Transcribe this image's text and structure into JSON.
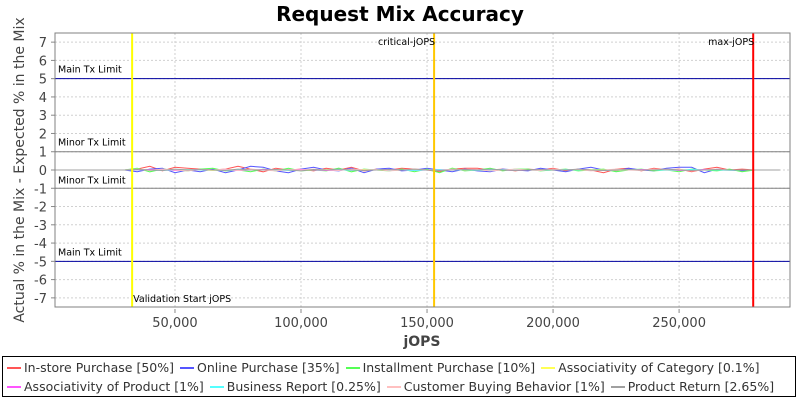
{
  "chart_data": {
    "type": "line",
    "title": "Request Mix Accuracy",
    "xlabel": "jOPS",
    "ylabel": "Actual % in the Mix - Expected % in the Mix",
    "xlim": [
      2400,
      294000
    ],
    "ylim": [
      -7.5,
      7.5
    ],
    "xticks": [
      50000,
      100000,
      150000,
      200000,
      250000
    ],
    "xtick_labels": [
      "50,000",
      "100,000",
      "150,000",
      "200,000",
      "250,000"
    ],
    "yticks": [
      7,
      6,
      5,
      4,
      3,
      2,
      1,
      0,
      -1,
      -2,
      -3,
      -4,
      -5,
      -6,
      -7
    ],
    "grid": true,
    "legend_position": "bottom",
    "hlines": [
      {
        "y": 5,
        "label": "Main Tx Limit",
        "color": "#0000a0"
      },
      {
        "y": 1,
        "label": "Minor Tx Limit",
        "color": "#808080"
      },
      {
        "y": -1,
        "label": "Minor Tx Limit",
        "color": "#808080"
      },
      {
        "y": -5,
        "label": "Main Tx Limit",
        "color": "#0000a0"
      }
    ],
    "vlines": [
      {
        "x": 33000,
        "label": "Validation Start jOPS",
        "color": "#ffff00"
      },
      {
        "x": 152800,
        "label": "critical-jOPS",
        "color": "#ffc800"
      },
      {
        "x": 279400,
        "label": "max-jOPS",
        "color": "#ff0000"
      }
    ],
    "x": [
      5000,
      10000,
      15000,
      20000,
      25000,
      30000,
      35000,
      40000,
      45000,
      50000,
      55000,
      60000,
      65000,
      70000,
      75000,
      80000,
      85000,
      90000,
      95000,
      100000,
      105000,
      110000,
      115000,
      120000,
      125000,
      130000,
      135000,
      140000,
      145000,
      150000,
      155000,
      160000,
      165000,
      170000,
      175000,
      180000,
      185000,
      190000,
      195000,
      200000,
      205000,
      210000,
      215000,
      220000,
      225000,
      230000,
      235000,
      240000,
      245000,
      250000,
      255000,
      260000,
      265000,
      270000,
      275000,
      280000,
      285000,
      290000
    ],
    "series": [
      {
        "name": "In-store Purchase [50%]",
        "color": "#ff5555",
        "values": [
          0,
          0,
          0,
          0,
          0,
          0,
          0.05,
          0.2,
          -0.05,
          0.15,
          0.1,
          0.05,
          0,
          0.05,
          0.2,
          0.05,
          -0.1,
          0.1,
          0,
          0.05,
          -0.05,
          0.1,
          0,
          0.15,
          -0.05,
          0.05,
          0,
          0.1,
          0.05,
          0,
          -0.1,
          0.05,
          0.1,
          0.1,
          0,
          0.05,
          -0.05,
          0.05,
          0,
          0.1,
          -0.05,
          0.05,
          0,
          -0.15,
          0.05,
          0.1,
          -0.05,
          0.1,
          0,
          0.05,
          -0.1,
          0.05,
          0.15,
          0,
          0.05,
          0,
          0,
          0
        ]
      },
      {
        "name": "Online Purchase [35%]",
        "color": "#5555ff",
        "values": [
          0,
          0,
          0,
          0,
          0,
          0,
          -0.1,
          0.05,
          0.1,
          -0.15,
          0,
          -0.1,
          0.05,
          -0.15,
          0,
          0.2,
          0.15,
          -0.05,
          -0.15,
          0.05,
          0.15,
          0,
          -0.05,
          0.1,
          -0.15,
          0.05,
          0.1,
          -0.05,
          0,
          0.1,
          0,
          -0.1,
          0.05,
          -0.05,
          -0.1,
          0.05,
          0,
          -0.05,
          0.1,
          0,
          -0.1,
          0.05,
          0.15,
          0,
          -0.05,
          0.1,
          0,
          -0.05,
          0.1,
          0.15,
          0.15,
          -0.15,
          0.05,
          0,
          -0.05,
          0,
          0,
          0
        ]
      },
      {
        "name": "Installment Purchase [10%]",
        "color": "#55ff55",
        "values": [
          0,
          0,
          0,
          0,
          0,
          0,
          0.1,
          -0.1,
          0.05,
          0,
          -0.05,
          0.05,
          0.1,
          -0.05,
          0,
          -0.1,
          0.05,
          -0.05,
          0.1,
          -0.05,
          0,
          -0.05,
          0.1,
          -0.1,
          0.05,
          0,
          -0.05,
          0.05,
          -0.1,
          0.05,
          -0.15,
          0.1,
          -0.05,
          0,
          0.1,
          -0.05,
          0.05,
          0.05,
          -0.05,
          0,
          0.05,
          -0.05,
          0,
          0.05,
          -0.1,
          0,
          0.05,
          -0.05,
          0,
          -0.1,
          0.05,
          0,
          -0.05,
          0.05,
          -0.1,
          0,
          0,
          0
        ]
      },
      {
        "name": "Associativity of Category [0.1%]",
        "color": "#ffff55",
        "values": [
          0,
          0,
          0,
          0,
          0,
          0,
          0.02,
          0,
          0.02,
          0,
          0.02,
          0,
          -0.02,
          0,
          0.02,
          0,
          0,
          0.02,
          0,
          -0.02,
          0,
          0.02,
          0,
          0,
          0.02,
          0,
          -0.02,
          0,
          0.02,
          0,
          0,
          0.02,
          0,
          0,
          -0.02,
          0,
          0.02,
          0,
          0,
          0.02,
          0,
          0,
          0.02,
          0,
          -0.02,
          0,
          0.02,
          0,
          0,
          0.02,
          0,
          0,
          0.02,
          0,
          0,
          0,
          0,
          0
        ]
      },
      {
        "name": "Associativity of Product [1%]",
        "color": "#ff55ff",
        "values": [
          0,
          0,
          0,
          0,
          0,
          0,
          0,
          0.03,
          0,
          -0.03,
          0,
          0.03,
          0,
          0,
          -0.03,
          0,
          0.03,
          0,
          0,
          0.03,
          0,
          -0.03,
          0,
          0.03,
          0,
          0,
          0.03,
          0,
          -0.03,
          0,
          0.03,
          0,
          0,
          0.03,
          0,
          0,
          -0.03,
          0,
          0.03,
          0,
          0,
          0.03,
          0,
          -0.03,
          0,
          0,
          0.03,
          0,
          0,
          -0.03,
          0,
          0.03,
          0,
          0,
          0,
          0,
          0,
          0
        ]
      },
      {
        "name": "Business Report [0.25%]",
        "color": "#55ffff",
        "values": [
          0,
          0,
          0,
          0,
          0,
          0,
          0.02,
          0,
          -0.02,
          0,
          0.02,
          0,
          0,
          -0.02,
          0,
          0.02,
          0,
          0,
          -0.02,
          0,
          0.02,
          0,
          0,
          -0.02,
          0,
          0.02,
          0,
          0,
          -0.02,
          0,
          0.02,
          0,
          0,
          -0.02,
          0,
          0.02,
          0,
          0,
          -0.02,
          0,
          0.02,
          0,
          0,
          -0.02,
          0,
          0.02,
          0,
          0,
          -0.02,
          0,
          0.02,
          0,
          0,
          -0.02,
          0,
          0,
          0,
          0
        ]
      },
      {
        "name": "Customer Buying Behavior [1%]",
        "color": "#ffc0c0",
        "values": [
          0,
          0,
          0,
          0,
          0,
          0,
          0.05,
          -0.03,
          0.05,
          0,
          -0.05,
          0.03,
          0,
          0.05,
          -0.03,
          0.05,
          0,
          -0.05,
          0.03,
          0,
          0.05,
          0,
          -0.03,
          0.05,
          0,
          0.03,
          -0.05,
          0,
          0.05,
          0,
          -0.03,
          0.05,
          0,
          0.03,
          -0.05,
          0,
          0.05,
          0,
          -0.03,
          0.05,
          0,
          0.03,
          -0.05,
          0,
          0.05,
          0,
          -0.03,
          0.05,
          0,
          0.03,
          -0.05,
          0,
          0.05,
          0,
          0,
          0,
          0,
          0
        ]
      },
      {
        "name": "Product Return [2.65%]",
        "color": "#a0a0a0",
        "values": [
          0,
          0,
          0,
          0,
          0,
          0,
          0.03,
          0,
          -0.03,
          0.05,
          0,
          0.03,
          0,
          -0.03,
          0.05,
          0,
          0,
          0.03,
          0,
          -0.05,
          0.03,
          0,
          0.05,
          0,
          -0.03,
          0,
          0.03,
          0,
          0.05,
          0,
          -0.03,
          0,
          0.03,
          0,
          0.05,
          0,
          -0.03,
          0,
          0.03,
          0,
          0,
          0.05,
          0,
          -0.03,
          0,
          0.03,
          0,
          0,
          0.05,
          0,
          -0.03,
          0,
          0.03,
          0,
          0,
          0,
          0,
          0
        ]
      }
    ]
  }
}
